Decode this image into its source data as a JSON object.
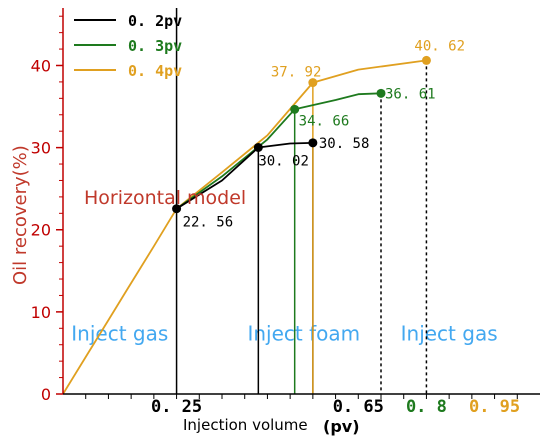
{
  "chart_data": {
    "type": "line",
    "xlabel": "Injection volume",
    "xunit": "(pv)",
    "ylabel": "Oil recovery(%)",
    "ylim": [
      0,
      47
    ],
    "yticks": [
      0,
      10,
      20,
      30,
      40
    ],
    "xlim": [
      0,
      1.05
    ],
    "model_label": "Horizontal model",
    "colors": {
      "axis": "#c00000",
      "s02": "#000000",
      "s03": "#1e7a1e",
      "s04": "#e0a020"
    },
    "x_tick_labels": [
      {
        "x": 0.25,
        "text": "0. 25",
        "color": "#000000"
      },
      {
        "x": 0.65,
        "text": "0. 65",
        "color": "#000000"
      },
      {
        "x": 0.8,
        "text": "0. 8",
        "color": "#1e7a1e"
      },
      {
        "x": 0.95,
        "text": "0. 95",
        "color": "#e0a020"
      }
    ],
    "zones": [
      {
        "x": 0.125,
        "y": 6.5,
        "text": "Inject gas"
      },
      {
        "x": 0.53,
        "y": 6.5,
        "text": "Inject foam"
      },
      {
        "x": 0.85,
        "y": 6.5,
        "text": "Inject gas"
      }
    ],
    "series": [
      {
        "name": "0. 2pv",
        "key": "s02",
        "points": [
          [
            0.25,
            22.56
          ],
          [
            0.35,
            26.0
          ],
          [
            0.43,
            30.02
          ],
          [
            0.5,
            30.5
          ],
          [
            0.55,
            30.58
          ]
        ]
      },
      {
        "name": "0. 3pv",
        "key": "s03",
        "points": [
          [
            0.25,
            22.56
          ],
          [
            0.35,
            26.5
          ],
          [
            0.45,
            31.0
          ],
          [
            0.51,
            34.66
          ],
          [
            0.6,
            35.8
          ],
          [
            0.65,
            36.5
          ],
          [
            0.7,
            36.61
          ]
        ]
      },
      {
        "name": "0. 4pv",
        "key": "s04",
        "points": [
          [
            0.0,
            0.0
          ],
          [
            0.05,
            4.5
          ],
          [
            0.1,
            9.0
          ],
          [
            0.15,
            13.5
          ],
          [
            0.2,
            18.0
          ],
          [
            0.25,
            22.56
          ],
          [
            0.35,
            27.0
          ],
          [
            0.45,
            31.5
          ],
          [
            0.55,
            37.92
          ],
          [
            0.65,
            39.5
          ],
          [
            0.8,
            40.62
          ]
        ]
      }
    ],
    "point_labels": [
      {
        "x": 0.25,
        "y": 22.56,
        "text": "22. 56",
        "key": "s02",
        "dx": 6,
        "dy": 18
      },
      {
        "x": 0.43,
        "y": 30.02,
        "text": "30. 02",
        "key": "s02",
        "dx": 0,
        "dy": 18
      },
      {
        "x": 0.55,
        "y": 30.58,
        "text": "30. 58",
        "key": "s02",
        "dx": 6,
        "dy": 5
      },
      {
        "x": 0.51,
        "y": 34.66,
        "text": "34. 66",
        "key": "s03",
        "dx": 4,
        "dy": 16
      },
      {
        "x": 0.7,
        "y": 36.61,
        "text": "36. 61",
        "key": "s03",
        "dx": 4,
        "dy": 5
      },
      {
        "x": 0.55,
        "y": 37.92,
        "text": "37. 92",
        "key": "s04",
        "dx": -42,
        "dy": -6
      },
      {
        "x": 0.8,
        "y": 40.62,
        "text": "40. 62",
        "key": "s04",
        "dx": -12,
        "dy": -10
      }
    ],
    "drops": [
      {
        "x": 0.25,
        "from": 47,
        "key": "s02",
        "dash": false
      },
      {
        "x": 0.43,
        "from": 30.02,
        "key": "s02",
        "dash": false
      },
      {
        "x": 0.55,
        "from": 30.58,
        "key": "s02",
        "dash": false
      },
      {
        "x": 0.51,
        "from": 34.66,
        "key": "s03",
        "dash": false
      },
      {
        "x": 0.55,
        "from": 37.92,
        "key": "s04",
        "dash": false
      },
      {
        "x": 0.7,
        "from": 36.61,
        "key": "s02",
        "dash": true
      },
      {
        "x": 0.8,
        "from": 40.62,
        "key": "s02",
        "dash": true
      }
    ],
    "markers": [
      {
        "x": 0.25,
        "y": 22.56,
        "key": "s02"
      },
      {
        "x": 0.43,
        "y": 30.02,
        "key": "s02"
      },
      {
        "x": 0.55,
        "y": 30.58,
        "key": "s02"
      },
      {
        "x": 0.51,
        "y": 34.66,
        "key": "s03"
      },
      {
        "x": 0.7,
        "y": 36.61,
        "key": "s03"
      },
      {
        "x": 0.55,
        "y": 37.92,
        "key": "s04"
      },
      {
        "x": 0.8,
        "y": 40.62,
        "key": "s04"
      }
    ]
  }
}
